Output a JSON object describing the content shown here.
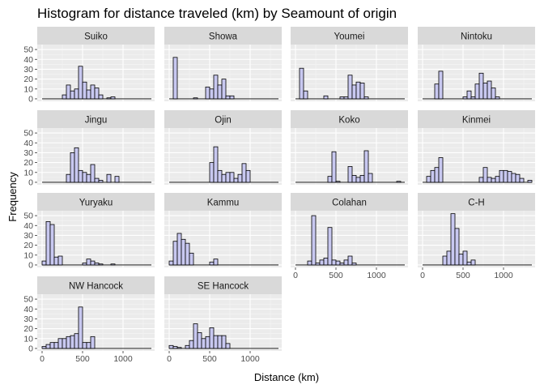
{
  "chart_data": {
    "type": "bar",
    "title": "Histogram for distance traveled (km) by Seamount of origin",
    "xlabel": "Distance (km)",
    "ylabel": "Frequency",
    "xlim": [
      -60,
      1390
    ],
    "ylim": [
      -2.5,
      55
    ],
    "x_ticks": [
      0,
      500,
      1000
    ],
    "x_tick_labels": [
      "0",
      "500",
      "1000"
    ],
    "y_ticks": [
      0,
      10,
      20,
      30,
      40,
      50
    ],
    "y_tick_labels": [
      "0",
      "10",
      "20",
      "30",
      "40",
      "50"
    ],
    "bin_width": 50,
    "grid": true,
    "bar_fill": "#c8c8f0",
    "bar_stroke": "#000000",
    "panel_background": "#ebebeb",
    "strip_background": "#d9d9d9",
    "facets": [
      {
        "name": "Suiko",
        "bins": [
          [
            250,
            4
          ],
          [
            300,
            14
          ],
          [
            350,
            8
          ],
          [
            400,
            10
          ],
          [
            450,
            33
          ],
          [
            500,
            17
          ],
          [
            550,
            9
          ],
          [
            600,
            14
          ],
          [
            650,
            11
          ],
          [
            700,
            4
          ],
          [
            800,
            1
          ],
          [
            850,
            2
          ]
        ]
      },
      {
        "name": "Showa",
        "bins": [
          [
            50,
            42
          ],
          [
            300,
            1
          ],
          [
            450,
            12
          ],
          [
            500,
            10
          ],
          [
            550,
            24
          ],
          [
            600,
            14
          ],
          [
            650,
            20
          ],
          [
            700,
            3
          ],
          [
            750,
            3
          ]
        ]
      },
      {
        "name": "Youmei",
        "bins": [
          [
            50,
            31
          ],
          [
            100,
            8
          ],
          [
            350,
            3
          ],
          [
            550,
            2
          ],
          [
            600,
            2
          ],
          [
            650,
            24
          ],
          [
            700,
            14
          ],
          [
            750,
            17
          ],
          [
            800,
            16
          ],
          [
            850,
            2
          ]
        ]
      },
      {
        "name": "Nintoku",
        "bins": [
          [
            150,
            15
          ],
          [
            200,
            28
          ],
          [
            500,
            2
          ],
          [
            550,
            8
          ],
          [
            600,
            2
          ],
          [
            650,
            15
          ],
          [
            700,
            26
          ],
          [
            750,
            16
          ],
          [
            800,
            18
          ],
          [
            850,
            11
          ],
          [
            900,
            2
          ]
        ]
      },
      {
        "name": "Jingu",
        "bins": [
          [
            300,
            8
          ],
          [
            350,
            30
          ],
          [
            400,
            35
          ],
          [
            450,
            12
          ],
          [
            500,
            10
          ],
          [
            550,
            8
          ],
          [
            600,
            18
          ],
          [
            650,
            4
          ],
          [
            700,
            2
          ],
          [
            800,
            8
          ],
          [
            900,
            6
          ]
        ]
      },
      {
        "name": "Ojin",
        "bins": [
          [
            500,
            20
          ],
          [
            550,
            36
          ],
          [
            600,
            12
          ],
          [
            650,
            8
          ],
          [
            700,
            10
          ],
          [
            750,
            10
          ],
          [
            800,
            4
          ],
          [
            850,
            8
          ],
          [
            900,
            19
          ],
          [
            950,
            12
          ]
        ]
      },
      {
        "name": "Koko",
        "bins": [
          [
            400,
            6
          ],
          [
            450,
            31
          ],
          [
            500,
            1
          ],
          [
            650,
            16
          ],
          [
            700,
            7
          ],
          [
            750,
            5
          ],
          [
            800,
            7
          ],
          [
            850,
            32
          ],
          [
            900,
            9
          ],
          [
            1250,
            1
          ]
        ]
      },
      {
        "name": "Kinmei",
        "bins": [
          [
            50,
            6
          ],
          [
            100,
            12
          ],
          [
            150,
            15
          ],
          [
            200,
            25
          ],
          [
            700,
            5
          ],
          [
            750,
            15
          ],
          [
            800,
            5
          ],
          [
            850,
            4
          ],
          [
            900,
            6
          ],
          [
            950,
            12
          ],
          [
            1000,
            12
          ],
          [
            1050,
            11
          ],
          [
            1100,
            9
          ],
          [
            1150,
            8
          ],
          [
            1200,
            4
          ],
          [
            1300,
            2
          ]
        ]
      },
      {
        "name": "Yuryaku",
        "bins": [
          [
            0,
            4
          ],
          [
            50,
            44
          ],
          [
            100,
            41
          ],
          [
            150,
            8
          ],
          [
            200,
            9
          ],
          [
            500,
            2
          ],
          [
            550,
            6
          ],
          [
            600,
            4
          ],
          [
            650,
            2
          ],
          [
            700,
            1
          ],
          [
            850,
            1
          ]
        ]
      },
      {
        "name": "Kammu",
        "bins": [
          [
            0,
            4
          ],
          [
            50,
            24
          ],
          [
            100,
            32
          ],
          [
            150,
            26
          ],
          [
            200,
            22
          ],
          [
            250,
            12
          ],
          [
            500,
            3
          ],
          [
            550,
            6
          ]
        ]
      },
      {
        "name": "Colahan",
        "bins": [
          [
            150,
            4
          ],
          [
            200,
            50
          ],
          [
            250,
            2
          ],
          [
            300,
            5
          ],
          [
            350,
            7
          ],
          [
            400,
            38
          ],
          [
            450,
            5
          ],
          [
            500,
            4
          ],
          [
            550,
            2
          ],
          [
            600,
            5
          ],
          [
            650,
            9
          ],
          [
            700,
            2
          ]
        ]
      },
      {
        "name": "C-H",
        "bins": [
          [
            250,
            9
          ],
          [
            300,
            14
          ],
          [
            350,
            52
          ],
          [
            400,
            37
          ],
          [
            450,
            11
          ],
          [
            500,
            14
          ],
          [
            550,
            3
          ],
          [
            600,
            5
          ]
        ]
      },
      {
        "name": "NW Hancock",
        "bins": [
          [
            0,
            2
          ],
          [
            50,
            4
          ],
          [
            100,
            6
          ],
          [
            150,
            6
          ],
          [
            200,
            10
          ],
          [
            250,
            10
          ],
          [
            300,
            12
          ],
          [
            350,
            13
          ],
          [
            400,
            15
          ],
          [
            450,
            42
          ],
          [
            500,
            6
          ],
          [
            550,
            6
          ],
          [
            600,
            12
          ]
        ]
      },
      {
        "name": "SE Hancock",
        "bins": [
          [
            0,
            3
          ],
          [
            50,
            2
          ],
          [
            100,
            1
          ],
          [
            200,
            3
          ],
          [
            250,
            8
          ],
          [
            300,
            25
          ],
          [
            350,
            16
          ],
          [
            400,
            10
          ],
          [
            450,
            12
          ],
          [
            500,
            21
          ],
          [
            550,
            13
          ],
          [
            600,
            13
          ],
          [
            650,
            13
          ],
          [
            700,
            5
          ]
        ]
      }
    ]
  }
}
